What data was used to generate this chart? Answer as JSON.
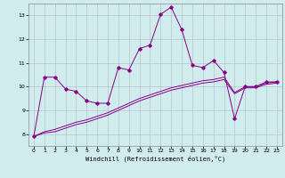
{
  "xlabel": "Windchill (Refroidissement éolien,°C)",
  "background_color": "#d0ecec",
  "line_color": "#880088",
  "grid_color": "#b0b8cc",
  "xlim": [
    -0.5,
    23.5
  ],
  "ylim": [
    7.5,
    13.5
  ],
  "xticks": [
    0,
    1,
    2,
    3,
    4,
    5,
    6,
    7,
    8,
    9,
    10,
    11,
    12,
    13,
    14,
    15,
    16,
    17,
    18,
    19,
    20,
    21,
    22,
    23
  ],
  "yticks": [
    8,
    9,
    10,
    11,
    12,
    13
  ],
  "line1_x": [
    0,
    1,
    2,
    3,
    4,
    5,
    6,
    7,
    8,
    9,
    10,
    11,
    12,
    13,
    14,
    15,
    16,
    17,
    18,
    19,
    20,
    21,
    22,
    23
  ],
  "line1_y": [
    7.9,
    10.4,
    10.4,
    9.9,
    9.8,
    9.4,
    9.3,
    9.3,
    10.8,
    10.7,
    11.6,
    11.75,
    13.05,
    13.35,
    12.4,
    10.9,
    10.8,
    11.1,
    10.6,
    8.65,
    10.0,
    10.0,
    10.2,
    10.2
  ],
  "line2_x": [
    0,
    1,
    2,
    3,
    4,
    5,
    6,
    7,
    8,
    9,
    10,
    11,
    12,
    13,
    14,
    15,
    16,
    17,
    18,
    19,
    20,
    21,
    22,
    23
  ],
  "line2_y": [
    7.9,
    8.1,
    8.2,
    8.35,
    8.5,
    8.6,
    8.75,
    8.9,
    9.1,
    9.3,
    9.5,
    9.65,
    9.8,
    9.95,
    10.05,
    10.15,
    10.25,
    10.3,
    10.4,
    9.75,
    10.0,
    10.0,
    10.15,
    10.2
  ],
  "line3_x": [
    0,
    1,
    2,
    3,
    4,
    5,
    6,
    7,
    8,
    9,
    10,
    11,
    12,
    13,
    14,
    15,
    16,
    17,
    18,
    19,
    20,
    21,
    22,
    23
  ],
  "line3_y": [
    7.9,
    8.05,
    8.1,
    8.25,
    8.4,
    8.5,
    8.65,
    8.8,
    9.0,
    9.2,
    9.4,
    9.55,
    9.7,
    9.85,
    9.95,
    10.05,
    10.15,
    10.2,
    10.3,
    9.7,
    9.95,
    9.95,
    10.1,
    10.15
  ],
  "figsize": [
    3.2,
    2.0
  ],
  "dpi": 100
}
